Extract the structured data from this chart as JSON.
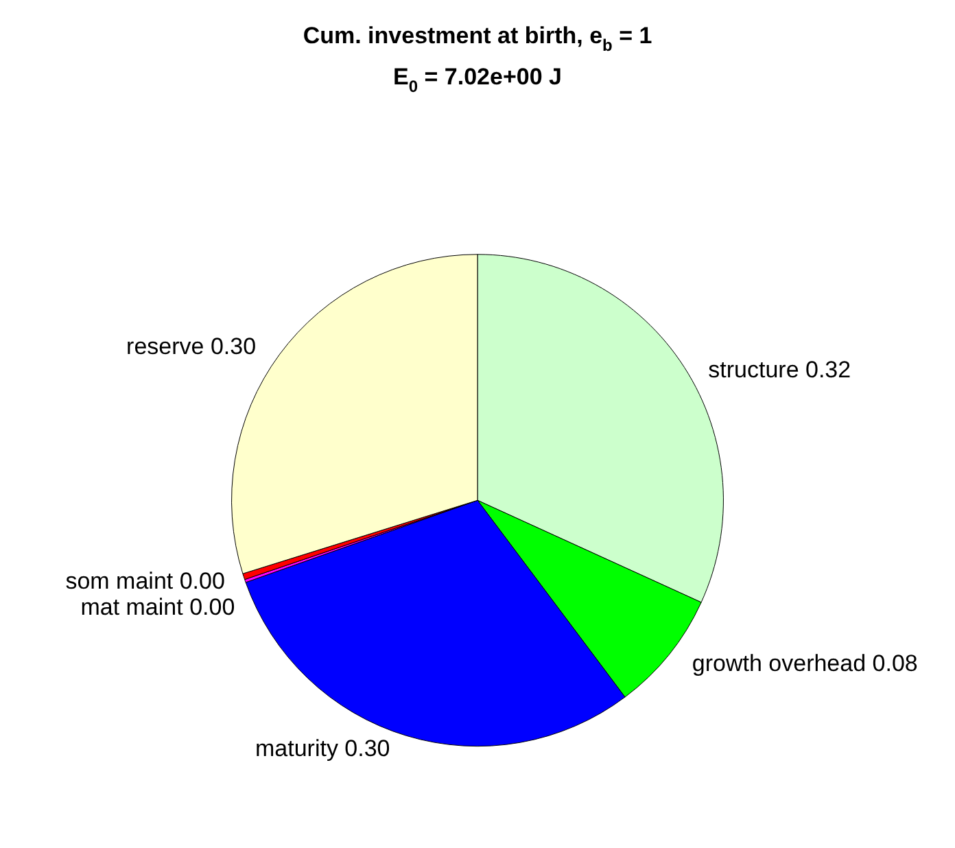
{
  "chart_data": {
    "type": "pie",
    "title": "Cum. investment at birth, e$_{b}$ = 1",
    "subtitle": "E$_{0}$ = 7.02e+00 J",
    "categories": [
      "structure",
      "growth overhead",
      "maturity",
      "mat maint",
      "som maint",
      "reserve"
    ],
    "values": [
      0.32,
      0.08,
      0.3,
      0.002,
      0.004,
      0.3
    ],
    "value_labels": [
      "0.32",
      "0.08",
      "0.30",
      "0.00",
      "0.00",
      "0.30"
    ],
    "colors": [
      "#ccffcc",
      "#00ff00",
      "#0000ff",
      "#ff00ff",
      "#ff0000",
      "#ffffcc"
    ],
    "legend": false
  }
}
